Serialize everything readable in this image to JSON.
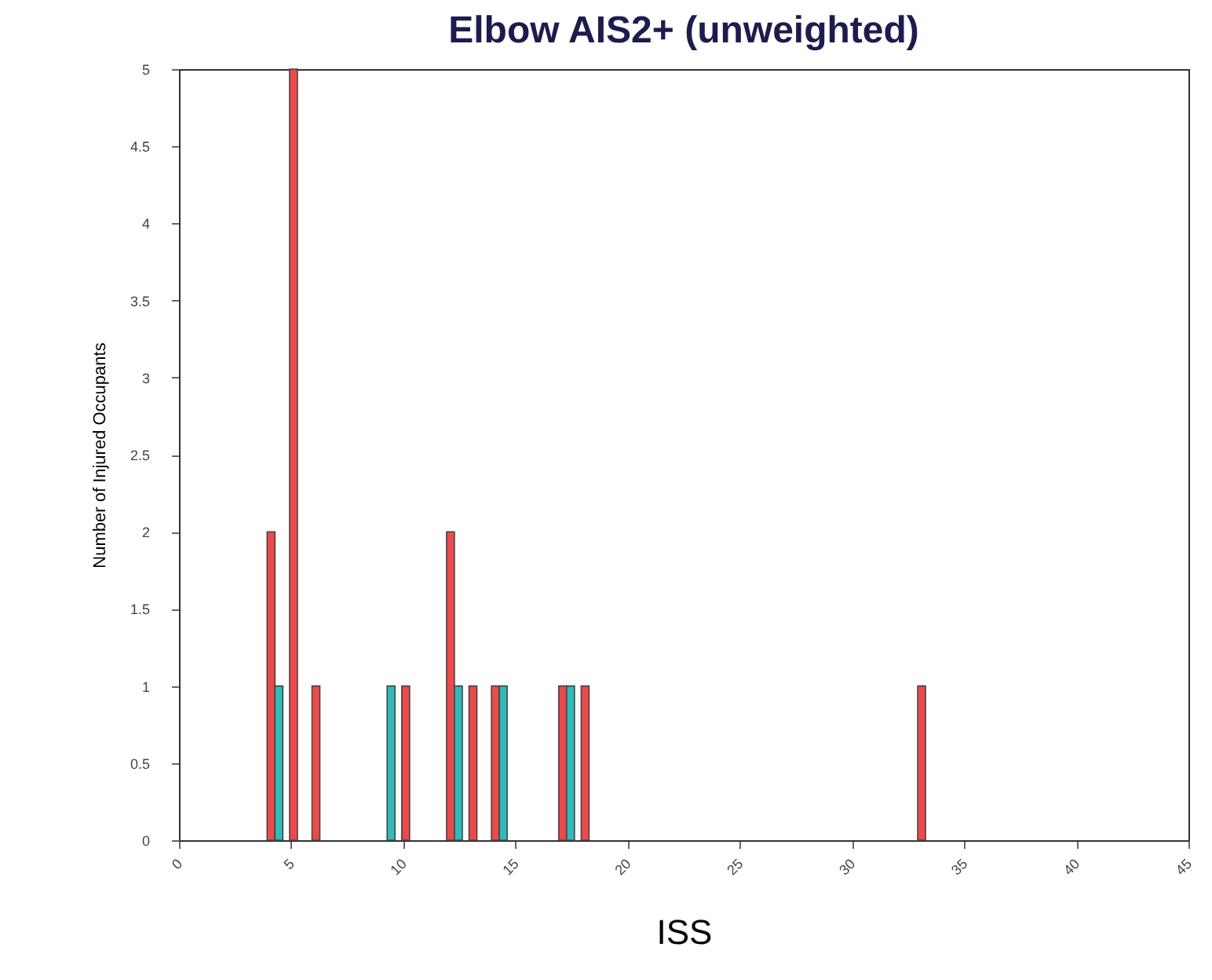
{
  "chart_data": {
    "type": "bar",
    "title": "Elbow AIS2+ (unweighted)",
    "xlabel": "ISS",
    "ylabel": "Number of Injured Occupants",
    "xlim": [
      0,
      45
    ],
    "xticks": [
      0,
      5,
      10,
      15,
      20,
      25,
      30,
      35,
      40,
      45
    ],
    "ylim": [
      0,
      5
    ],
    "yticks": [
      0,
      0.5,
      1,
      1.5,
      2,
      2.5,
      3,
      3.5,
      4,
      4.5,
      5
    ],
    "grid": false,
    "series": [
      {
        "color": "#f04848",
        "x": [
          4,
          5,
          6,
          10,
          12,
          13,
          14,
          17,
          18,
          33
        ],
        "values": [
          2,
          5,
          1,
          1,
          2,
          1,
          1,
          1,
          1,
          1
        ]
      },
      {
        "color": "#2cbcbc",
        "x": [
          4,
          9,
          12,
          14,
          17
        ],
        "values": [
          1,
          1,
          1,
          1,
          1
        ]
      }
    ]
  }
}
